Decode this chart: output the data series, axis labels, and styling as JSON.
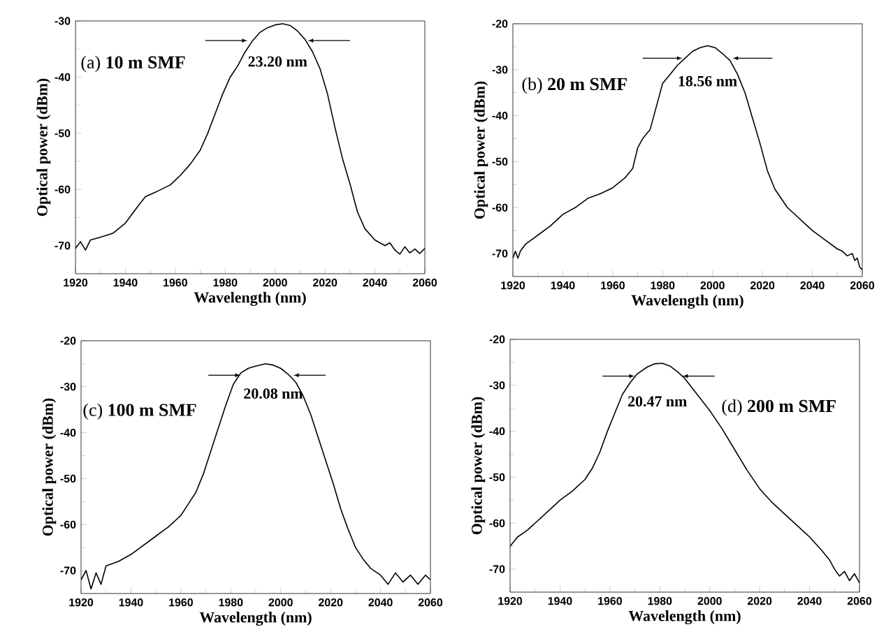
{
  "chart_data": [
    {
      "type": "line",
      "xlabel": "Wavelength (nm)",
      "ylabel": "Optical power (dBm)",
      "xlim": [
        1920,
        2060
      ],
      "ylim": [
        -75,
        -30
      ],
      "xticks": [
        1920,
        1940,
        1960,
        1980,
        2000,
        2020,
        2040,
        2060
      ],
      "yticks": [
        -70,
        -60,
        -50,
        -40,
        -30
      ],
      "series": [
        {
          "color": "#000000",
          "x": [
            1920,
            1922,
            1924,
            1926,
            1930,
            1935,
            1940,
            1945,
            1948,
            1952,
            1958,
            1962,
            1966,
            1970,
            1973,
            1976,
            1979,
            1982,
            1985,
            1988,
            1991,
            1994,
            1997,
            2000,
            2003,
            2006,
            2009,
            2012,
            2015,
            2018,
            2021,
            2024,
            2027,
            2030,
            2033,
            2036,
            2040,
            2044,
            2046,
            2048,
            2050,
            2052,
            2054,
            2056,
            2058,
            2060
          ],
          "values": [
            -70.5,
            -69.3,
            -70.8,
            -69,
            -68.5,
            -67.8,
            -66,
            -63,
            -61.3,
            -60.5,
            -59.2,
            -57.5,
            -55.5,
            -53,
            -50,
            -46.5,
            -43,
            -40,
            -38,
            -35.5,
            -33.5,
            -32,
            -31.2,
            -30.7,
            -30.5,
            -30.8,
            -31.8,
            -33.3,
            -35.5,
            -38.5,
            -43,
            -49,
            -54.5,
            -59,
            -64,
            -67,
            -69,
            -70,
            -69.5,
            -70.8,
            -71.5,
            -70.2,
            -71.3,
            -70.6,
            -71.4,
            -70.5
          ]
        }
      ],
      "annotations": [
        "(a) **10 m SMF**",
        "23.20 nm"
      ]
    },
    {
      "type": "line",
      "xlabel": "Wavelength (nm)",
      "ylabel": "Optical power (dBm)",
      "xlim": [
        1920,
        2060
      ],
      "ylim": [
        -75,
        -20
      ],
      "xticks": [
        1920,
        1940,
        1960,
        1980,
        2000,
        2020,
        2040,
        2060
      ],
      "yticks": [
        -70,
        -60,
        -50,
        -40,
        -30,
        -20
      ],
      "series": [
        {
          "color": "#000000",
          "x": [
            1920,
            1921,
            1922,
            1923,
            1925,
            1930,
            1935,
            1940,
            1945,
            1950,
            1955,
            1960,
            1965,
            1968,
            1970,
            1972,
            1975,
            1978,
            1980,
            1983,
            1986,
            1989,
            1992,
            1995,
            1998,
            2001,
            2004,
            2007,
            2010,
            2013,
            2016,
            2019,
            2022,
            2025,
            2030,
            2035,
            2040,
            2045,
            2050,
            2052,
            2054,
            2056,
            2057,
            2058,
            2059,
            2060
          ],
          "values": [
            -71,
            -69.5,
            -71,
            -69.5,
            -68,
            -66,
            -64,
            -61.5,
            -60,
            -58,
            -57,
            -55.7,
            -53.5,
            -51.5,
            -47,
            -45,
            -43,
            -37,
            -33,
            -31,
            -29,
            -27.5,
            -26,
            -25.2,
            -24.8,
            -25.2,
            -26.5,
            -28,
            -31,
            -35,
            -40.5,
            -46,
            -52,
            -56,
            -60,
            -62.5,
            -65,
            -67,
            -69,
            -69.5,
            -70.5,
            -70,
            -71.5,
            -71,
            -73,
            -73.5
          ]
        }
      ],
      "annotations": [
        "(b) **20 m SMF**",
        "18.56 nm"
      ]
    },
    {
      "type": "line",
      "xlabel": "Wavelength (nm)",
      "ylabel": "Optical power (dBm)",
      "xlim": [
        1920,
        2060
      ],
      "ylim": [
        -75,
        -20
      ],
      "xticks": [
        1920,
        1940,
        1960,
        1980,
        2000,
        2020,
        2040,
        2060
      ],
      "yticks": [
        -70,
        -60,
        -50,
        -40,
        -30,
        -20
      ],
      "series": [
        {
          "color": "#000000",
          "x": [
            1920,
            1922,
            1924,
            1926,
            1928,
            1930,
            1935,
            1940,
            1945,
            1950,
            1955,
            1960,
            1963,
            1966,
            1969,
            1972,
            1975,
            1978,
            1981,
            1984,
            1987,
            1990,
            1994,
            1997,
            2000,
            2003,
            2006,
            2009,
            2012,
            2015,
            2018,
            2021,
            2024,
            2027,
            2030,
            2033,
            2036,
            2040,
            2043,
            2046,
            2049,
            2052,
            2055,
            2058,
            2060
          ],
          "values": [
            -72,
            -70,
            -74,
            -70.5,
            -73,
            -69,
            -68,
            -66.5,
            -64.5,
            -62.5,
            -60.5,
            -58,
            -55.5,
            -53,
            -49,
            -44,
            -39,
            -34,
            -29.5,
            -27,
            -26,
            -25.5,
            -25,
            -25.3,
            -26,
            -27.3,
            -29,
            -32,
            -36,
            -41,
            -46,
            -51,
            -56.5,
            -61,
            -65,
            -67.5,
            -69.5,
            -71,
            -73,
            -70.5,
            -72.5,
            -71,
            -73,
            -71,
            -72
          ]
        }
      ],
      "annotations": [
        "(c) **100 m SMF**",
        "20.08 nm"
      ]
    },
    {
      "type": "line",
      "xlabel": "Wavelength (nm)",
      "ylabel": "Optical power (dBm)",
      "xlim": [
        1920,
        2060
      ],
      "ylim": [
        -75,
        -20
      ],
      "xticks": [
        1920,
        1940,
        1960,
        1980,
        2000,
        2020,
        2040,
        2060
      ],
      "yticks": [
        -70,
        -60,
        -50,
        -40,
        -30,
        -20
      ],
      "series": [
        {
          "color": "#000000",
          "x": [
            1920,
            1923,
            1927,
            1930,
            1935,
            1940,
            1945,
            1950,
            1953,
            1956,
            1959,
            1962,
            1965,
            1968,
            1971,
            1975,
            1978,
            1981,
            1984,
            1987,
            1990,
            1995,
            2000,
            2005,
            2010,
            2015,
            2020,
            2025,
            2030,
            2035,
            2040,
            2045,
            2048,
            2050,
            2052,
            2054,
            2056,
            2058,
            2060
          ],
          "values": [
            -65,
            -63,
            -61.5,
            -60,
            -57.5,
            -55,
            -53,
            -50.5,
            -48,
            -44.5,
            -40,
            -36,
            -32,
            -29.5,
            -27.5,
            -26,
            -25.3,
            -25.2,
            -25.8,
            -27,
            -28.5,
            -32,
            -35.5,
            -39.5,
            -44,
            -48.5,
            -52.5,
            -55.5,
            -58,
            -60.5,
            -63,
            -66,
            -68,
            -70,
            -71.5,
            -70.5,
            -72.5,
            -71,
            -73
          ]
        }
      ],
      "annotations": [
        "(d) **200 m SMF**",
        "20.47 nm"
      ]
    }
  ]
}
